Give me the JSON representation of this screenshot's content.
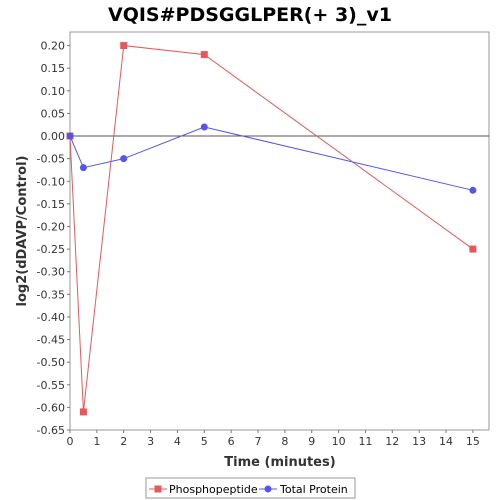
{
  "chart_data": {
    "type": "line",
    "title": "VQIS#PDSGGLPER(+ 3)_v1",
    "xlabel": "Time (minutes)",
    "ylabel": "log2(dDAVP/Control)",
    "xlim": [
      0,
      15.6
    ],
    "ylim": [
      -0.65,
      0.23
    ],
    "x_ticks": [
      0,
      1,
      2,
      3,
      4,
      5,
      6,
      7,
      8,
      9,
      10,
      11,
      12,
      13,
      14,
      15
    ],
    "y_ticks": [
      0.2,
      0.15,
      0.1,
      0.05,
      0.0,
      -0.05,
      -0.1,
      -0.15,
      -0.2,
      -0.25,
      -0.3,
      -0.35,
      -0.4,
      -0.45,
      -0.5,
      -0.55,
      -0.6,
      -0.65
    ],
    "y_tick_labels": [
      "0.20",
      "0.15",
      "0.10",
      "0.05",
      "0.00",
      "-0.05",
      "-0.10",
      "-0.15",
      "-0.20",
      "-0.25",
      "-0.30",
      "-0.35",
      "-0.40",
      "-0.45",
      "-0.50",
      "-0.55",
      "-0.60",
      "-0.65"
    ],
    "grid": false,
    "legend_position": "bottom",
    "series": [
      {
        "name": "Phosphopeptide",
        "color": "#e8585a",
        "marker": "square",
        "x": [
          0,
          0.5,
          2,
          5,
          15
        ],
        "y": [
          0.0,
          -0.61,
          0.2,
          0.18,
          -0.25
        ]
      },
      {
        "name": "Total Protein",
        "color": "#5555ee",
        "marker": "circle",
        "x": [
          0,
          0.5,
          2,
          5,
          15
        ],
        "y": [
          0.0,
          -0.07,
          -0.05,
          0.02,
          -0.12
        ]
      }
    ]
  }
}
